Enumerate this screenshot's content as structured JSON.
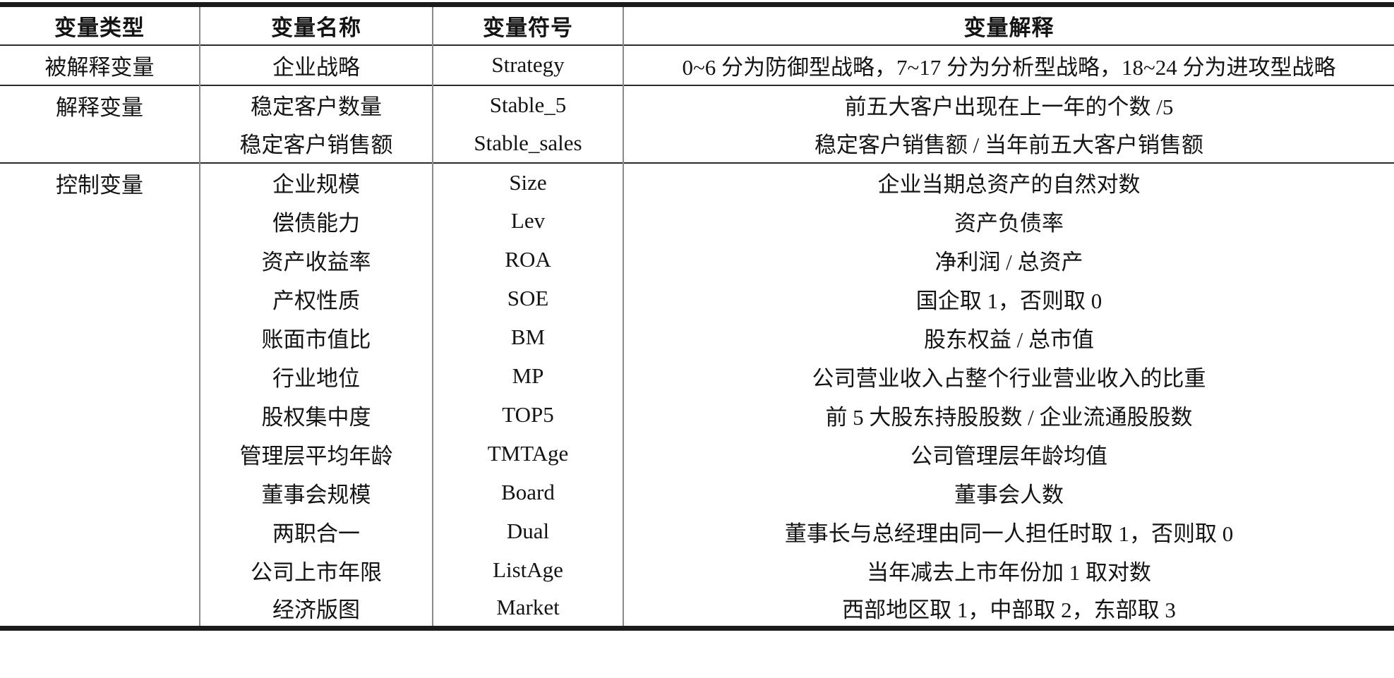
{
  "table": {
    "columns": [
      "变量类型",
      "变量名称",
      "变量符号",
      "变量解释"
    ],
    "sections": [
      {
        "type": "被解释变量",
        "rows": [
          {
            "name": "企业战略",
            "symbol": "Strategy",
            "explanation": "0~6 分为防御型战略，7~17 分为分析型战略，18~24 分为进攻型战略"
          }
        ]
      },
      {
        "type": "解释变量",
        "rows": [
          {
            "name": "稳定客户数量",
            "symbol": "Stable_5",
            "explanation": "前五大客户出现在上一年的个数 /5"
          },
          {
            "name": "稳定客户销售额",
            "symbol": "Stable_sales",
            "explanation": "稳定客户销售额 / 当年前五大客户销售额"
          }
        ]
      },
      {
        "type": "控制变量",
        "rows": [
          {
            "name": "企业规模",
            "symbol": "Size",
            "explanation": "企业当期总资产的自然对数"
          },
          {
            "name": "偿债能力",
            "symbol": "Lev",
            "explanation": "资产负债率"
          },
          {
            "name": "资产收益率",
            "symbol": "ROA",
            "explanation": "净利润 / 总资产"
          },
          {
            "name": "产权性质",
            "symbol": "SOE",
            "explanation": "国企取 1，否则取 0"
          },
          {
            "name": "账面市值比",
            "symbol": "BM",
            "explanation": "股东权益 / 总市值"
          },
          {
            "name": "行业地位",
            "symbol": "MP",
            "explanation": "公司营业收入占整个行业营业收入的比重"
          },
          {
            "name": "股权集中度",
            "symbol": "TOP5",
            "explanation": "前 5 大股东持股股数 / 企业流通股股数"
          },
          {
            "name": "管理层平均年龄",
            "symbol": "TMTAge",
            "explanation": "公司管理层年龄均值"
          },
          {
            "name": "董事会规模",
            "symbol": "Board",
            "explanation": "董事会人数"
          },
          {
            "name": "两职合一",
            "symbol": "Dual",
            "explanation": "董事长与总经理由同一人担任时取 1，否则取 0"
          },
          {
            "name": "公司上市年限",
            "symbol": "ListAge",
            "explanation": "当年减去上市年份加 1 取对数"
          },
          {
            "name": "经济版图",
            "symbol": "Market",
            "explanation": "西部地区取 1，中部取 2，东部取 3"
          }
        ]
      }
    ]
  },
  "colors": {
    "text": "#141414",
    "thick_rule": "#1b1b1b",
    "thin_rule": "#2b2b2b",
    "column_divider": "#8a8a8a",
    "background": "#ffffff"
  }
}
